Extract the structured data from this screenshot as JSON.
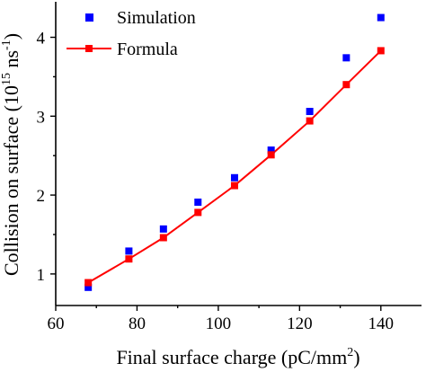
{
  "chart_data": {
    "type": "scatter",
    "xlabel": "Final surface charge (pC/mm",
    "xlabel_sup": "2",
    "xlabel_end": ")",
    "ylabel": "Collision on surface (10",
    "ylabel_sup1": "15",
    "ylabel_mid": " ns",
    "ylabel_sup2": "-1",
    "ylabel_end": ")",
    "xlim": [
      60,
      150
    ],
    "ylim": [
      0.6,
      4.45
    ],
    "xticks": [
      60,
      80,
      100,
      120,
      140
    ],
    "xtick_labels": [
      "60",
      "80",
      "100",
      "120",
      "140"
    ],
    "yticks": [
      1,
      2,
      3,
      4
    ],
    "ytick_labels": [
      "1",
      "2",
      "3",
      "4"
    ],
    "legend_position": "top-left",
    "series": [
      {
        "name": "Simulation",
        "style": "markers",
        "color": "#0000ff",
        "x": [
          68,
          78,
          86.5,
          95,
          104,
          113,
          122.5,
          131.5,
          140
        ],
        "y": [
          0.83,
          1.29,
          1.57,
          1.91,
          2.22,
          2.57,
          3.06,
          3.74,
          4.25
        ]
      },
      {
        "name": "Formula",
        "style": "line+markers",
        "color": "#ff0000",
        "x": [
          68,
          78,
          86.5,
          95,
          104,
          113,
          122.5,
          131.5,
          140
        ],
        "y": [
          0.89,
          1.19,
          1.46,
          1.78,
          2.12,
          2.51,
          2.94,
          3.4,
          3.83
        ]
      }
    ]
  }
}
